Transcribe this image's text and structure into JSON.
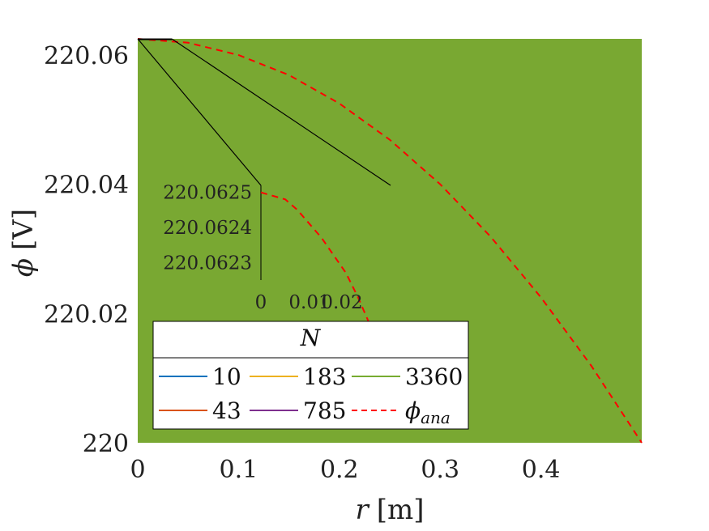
{
  "chart_data": {
    "type": "line",
    "xlabel_var": "r",
    "xlabel_unit": "[m]",
    "ylabel_var": "ϕ",
    "ylabel_unit": "[V]",
    "xlim": [
      0,
      0.5
    ],
    "ylim": [
      220,
      220.0625
    ],
    "x_ticks": [
      "0",
      "0.1",
      "0.2",
      "0.3",
      "0.4"
    ],
    "y_ticks": [
      "220",
      "220.02",
      "220.04",
      "220.06"
    ],
    "plot_background": "#79a832",
    "series": [
      {
        "name": "10",
        "color": "#0072bd",
        "dash": "solid"
      },
      {
        "name": "43",
        "color": "#d95319",
        "dash": "solid"
      },
      {
        "name": "183",
        "color": "#edb120",
        "dash": "solid"
      },
      {
        "name": "785",
        "color": "#7e2f8e",
        "dash": "solid"
      },
      {
        "name": "3360",
        "color": "#77ac30",
        "dash": "solid"
      },
      {
        "name": "ϕ_ana",
        "name_base": "ϕ",
        "name_sub": "ana",
        "color": "#ff0000",
        "dash": "dashed",
        "x": [
          0,
          0.05,
          0.1,
          0.15,
          0.2,
          0.25,
          0.3,
          0.35,
          0.4,
          0.45,
          0.5
        ],
        "y": [
          220.0625,
          220.0619,
          220.06,
          220.0569,
          220.0525,
          220.0469,
          220.04,
          220.0319,
          220.0225,
          220.0119,
          220.0
        ]
      }
    ],
    "inset": {
      "xlim": [
        0,
        0.025
      ],
      "ylim": [
        220.06225,
        220.06252
      ],
      "x_ticks": [
        "0",
        "0.01",
        "0.02"
      ],
      "y_ticks": [
        "220.0623",
        "220.0624",
        "220.0625"
      ],
      "y_tick_values": [
        220.0623,
        220.0624,
        220.0625
      ],
      "curve_x": [
        0,
        0.0025,
        0.005,
        0.0075,
        0.01,
        0.0125,
        0.015,
        0.0175,
        0.02,
        0.0225,
        0.025
      ],
      "curve_y": [
        220.0625,
        220.06249,
        220.06248,
        220.06245,
        220.06241,
        220.06237,
        220.06232,
        220.06227,
        220.0622,
        220.06212,
        220.06205
      ]
    },
    "legend": {
      "title": "N",
      "placement": "bottom-left",
      "columns": 3
    },
    "grid": false
  }
}
